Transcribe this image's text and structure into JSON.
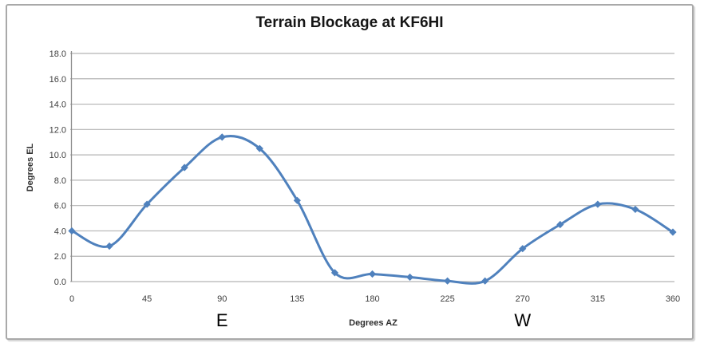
{
  "chart_data": {
    "type": "line",
    "title": "Terrain Blockage at KF6HI",
    "xlabel": "Degrees AZ",
    "ylabel": "Degrees EL",
    "x": [
      0,
      22.5,
      45,
      67.5,
      90,
      112.5,
      135,
      157.5,
      180,
      202.5,
      225,
      247.5,
      270,
      292.5,
      315,
      337.5,
      360
    ],
    "y": [
      4.0,
      2.8,
      6.1,
      9.0,
      11.4,
      10.5,
      6.4,
      0.7,
      0.6,
      0.35,
      0.05,
      0.05,
      2.6,
      4.5,
      6.1,
      5.7,
      3.9
    ],
    "xticks": [
      0,
      45,
      90,
      135,
      180,
      225,
      270,
      315,
      360
    ],
    "yticks": [
      0,
      2,
      4,
      6,
      8,
      10,
      12,
      14,
      16,
      18
    ],
    "ytick_decimals": 1,
    "xlim": [
      0,
      360
    ],
    "ylim": [
      0,
      18
    ],
    "grid": true,
    "legend": false,
    "smooth": true,
    "marker": "diamond",
    "line_color": "#4f81bd",
    "grid_color": "#b3b3b3",
    "axis_color": "#8c8c8c",
    "tick_label_color": "#3f3f3f",
    "annotations": [
      {
        "text": "E",
        "az": 90
      },
      {
        "text": "W",
        "az": 270
      }
    ]
  }
}
